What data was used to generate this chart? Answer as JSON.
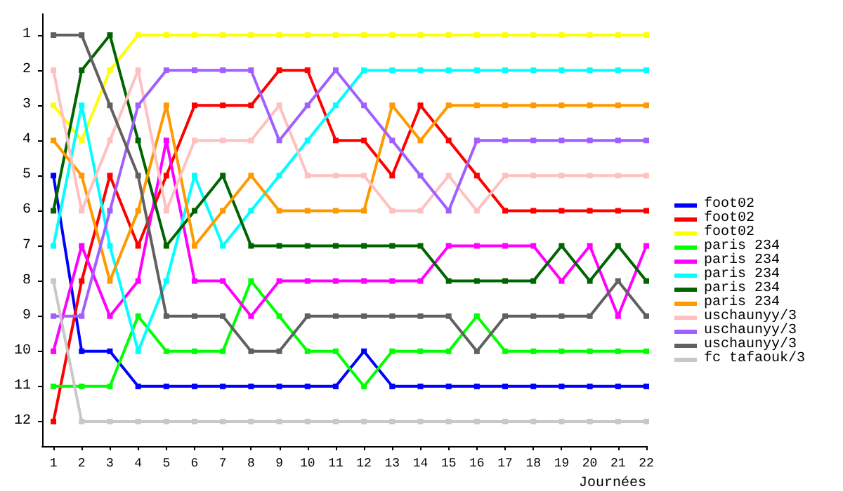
{
  "chart_data": {
    "type": "line",
    "xlabel": "Journées",
    "x": [
      1,
      2,
      3,
      4,
      5,
      6,
      7,
      8,
      9,
      10,
      11,
      12,
      13,
      14,
      15,
      16,
      17,
      18,
      19,
      20,
      21,
      22
    ],
    "xlim": [
      0.6,
      22
    ],
    "xticks": [
      1,
      2,
      3,
      4,
      5,
      6,
      7,
      8,
      9,
      10,
      11,
      12,
      13,
      14,
      15,
      16,
      17,
      18,
      19,
      20,
      21,
      22
    ],
    "ylim": [
      12.7,
      0.4
    ],
    "yticks": [
      1,
      2,
      3,
      4,
      5,
      6,
      7,
      8,
      9,
      10,
      11,
      12
    ],
    "grid": false,
    "legend": "right",
    "marker": "square",
    "line_style": "solid",
    "series": [
      {
        "name": "foot02",
        "color": "#0000ff",
        "values": [
          5,
          10,
          10,
          11,
          11,
          11,
          11,
          11,
          11,
          11,
          11,
          10,
          11,
          11,
          11,
          11,
          11,
          11,
          11,
          11,
          11,
          11
        ]
      },
      {
        "name": "foot02",
        "color": "#ff0000",
        "values": [
          12,
          8,
          5,
          7,
          5,
          3,
          3,
          3,
          2,
          2,
          4,
          4,
          5,
          3,
          4,
          5,
          6,
          6,
          6,
          6,
          6,
          6
        ]
      },
      {
        "name": "foot02",
        "color": "#ffff00",
        "values": [
          3,
          4,
          2,
          1,
          1,
          1,
          1,
          1,
          1,
          1,
          1,
          1,
          1,
          1,
          1,
          1,
          1,
          1,
          1,
          1,
          1,
          1
        ]
      },
      {
        "name": "paris 234",
        "color": "#00ff00",
        "values": [
          11,
          11,
          11,
          9,
          10,
          10,
          10,
          8,
          9,
          10,
          10,
          11,
          10,
          10,
          10,
          9,
          10,
          10,
          10,
          10,
          10,
          10
        ]
      },
      {
        "name": "paris 234",
        "color": "#ff00ff",
        "values": [
          10,
          7,
          9,
          8,
          4,
          8,
          8,
          9,
          8,
          8,
          8,
          8,
          8,
          8,
          7,
          7,
          7,
          7,
          8,
          7,
          9,
          7
        ]
      },
      {
        "name": "paris 234",
        "color": "#00ffff",
        "values": [
          7,
          3,
          7,
          10,
          8,
          5,
          7,
          6,
          5,
          4,
          3,
          2,
          2,
          2,
          2,
          2,
          2,
          2,
          2,
          2,
          2,
          2
        ]
      },
      {
        "name": "paris 234",
        "color": "#006400",
        "values": [
          6,
          2,
          1,
          4,
          7,
          6,
          5,
          7,
          7,
          7,
          7,
          7,
          7,
          7,
          8,
          8,
          8,
          8,
          7,
          8,
          7,
          8
        ]
      },
      {
        "name": "paris 234",
        "color": "#ff9900",
        "values": [
          4,
          5,
          8,
          6,
          3,
          7,
          6,
          5,
          6,
          6,
          6,
          6,
          3,
          4,
          3,
          3,
          3,
          3,
          3,
          3,
          3,
          3
        ]
      },
      {
        "name": "uschaunyy/3",
        "color": "#ffc0c0",
        "values": [
          2,
          6,
          4,
          2,
          6,
          4,
          4,
          4,
          3,
          5,
          5,
          5,
          6,
          6,
          5,
          6,
          5,
          5,
          5,
          5,
          5,
          5
        ]
      },
      {
        "name": "uschaunyy/3",
        "color": "#a060ff",
        "values": [
          9,
          9,
          6,
          3,
          2,
          2,
          2,
          2,
          4,
          3,
          2,
          3,
          4,
          5,
          6,
          4,
          4,
          4,
          4,
          4,
          4,
          4
        ]
      },
      {
        "name": "uschaunyy/3",
        "color": "#606060",
        "values": [
          1,
          1,
          3,
          5,
          9,
          9,
          9,
          10,
          10,
          9,
          9,
          9,
          9,
          9,
          9,
          10,
          9,
          9,
          9,
          9,
          8,
          9
        ]
      },
      {
        "name": "fc tafaouk/3",
        "color": "#c8c8c8",
        "values": [
          8,
          12,
          12,
          12,
          12,
          12,
          12,
          12,
          12,
          12,
          12,
          12,
          12,
          12,
          12,
          12,
          12,
          12,
          12,
          12,
          12,
          12
        ]
      }
    ]
  }
}
